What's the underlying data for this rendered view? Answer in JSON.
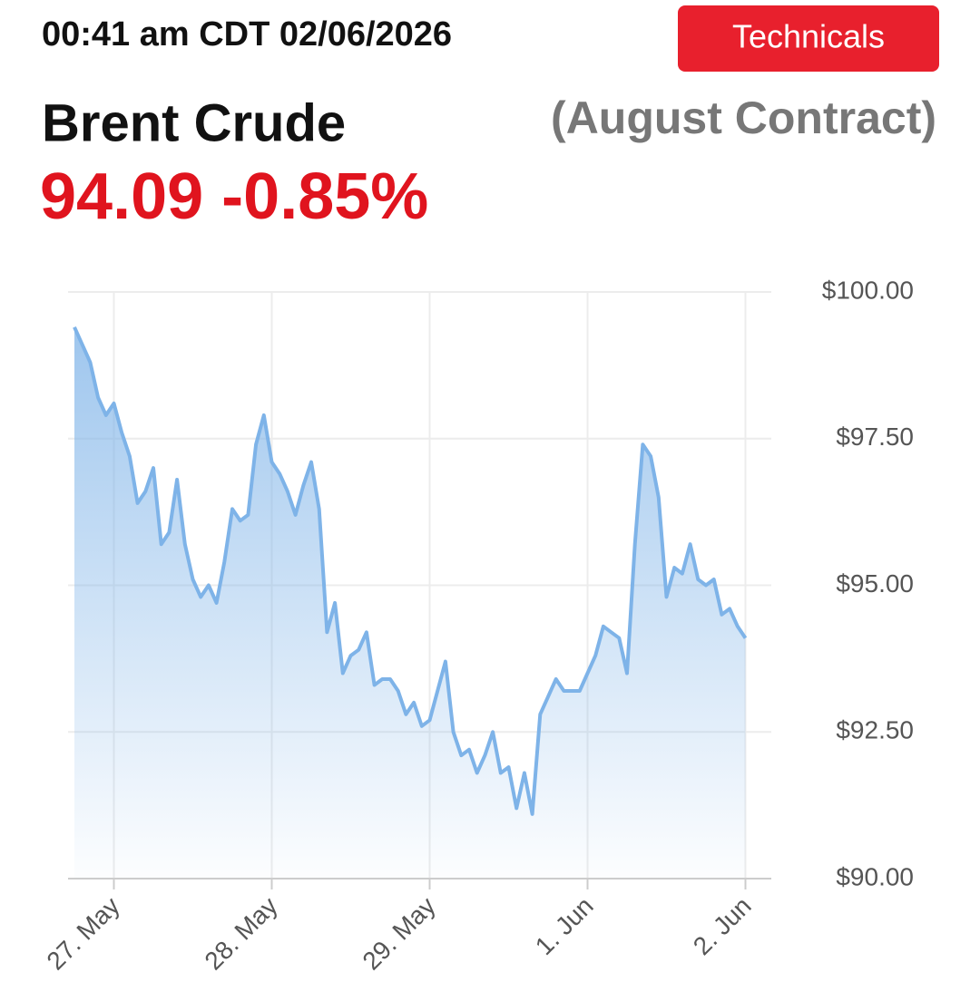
{
  "header": {
    "timestamp": "00:41 am CDT 02/06/2026",
    "button": "Technicals",
    "instrument": "Brent Crude",
    "contract": "(August Contract)",
    "quote": "94.09 -0.85%"
  },
  "chart_data": {
    "type": "area",
    "color": "#7eb3e8",
    "grid": true,
    "categories": [
      null,
      null,
      null,
      null,
      null,
      "27. May",
      null,
      null,
      null,
      null,
      null,
      null,
      null,
      null,
      null,
      null,
      null,
      null,
      null,
      null,
      null,
      null,
      null,
      null,
      null,
      "28. May",
      null,
      null,
      null,
      null,
      null,
      null,
      null,
      null,
      null,
      null,
      null,
      null,
      null,
      null,
      null,
      null,
      null,
      null,
      null,
      "29. May",
      null,
      null,
      null,
      null,
      null,
      null,
      null,
      null,
      null,
      null,
      null,
      null,
      null,
      null,
      null,
      null,
      null,
      null,
      null,
      "1. Jun",
      null,
      null,
      null,
      null,
      null,
      null,
      null,
      null,
      null,
      null,
      null,
      null,
      null,
      null,
      null,
      null,
      null,
      null,
      null,
      "2. Jun"
    ],
    "values": [
      99.4,
      99.1,
      98.8,
      98.2,
      97.9,
      98.1,
      97.6,
      97.2,
      96.4,
      96.6,
      97.0,
      95.7,
      95.9,
      96.8,
      95.7,
      95.1,
      94.8,
      95.0,
      94.7,
      95.4,
      96.3,
      96.1,
      96.2,
      97.4,
      97.9,
      97.1,
      96.9,
      96.6,
      96.2,
      96.7,
      97.1,
      96.3,
      94.2,
      94.7,
      93.5,
      93.8,
      93.9,
      94.2,
      93.3,
      93.4,
      93.4,
      93.2,
      92.8,
      93.0,
      92.6,
      92.7,
      93.2,
      93.7,
      92.5,
      92.1,
      92.2,
      91.8,
      92.1,
      92.5,
      91.8,
      91.9,
      91.2,
      91.8,
      91.1,
      92.8,
      93.1,
      93.4,
      93.2,
      93.2,
      93.2,
      93.5,
      93.8,
      94.3,
      94.2,
      94.1,
      93.5,
      95.7,
      97.4,
      97.2,
      96.5,
      94.8,
      95.3,
      95.2,
      95.7,
      95.1,
      95.0,
      95.1,
      94.5,
      94.6,
      94.3,
      94.1
    ],
    "ylim": [
      90,
      100
    ],
    "yticks": [
      {
        "value": 90,
        "label": "$90.00"
      },
      {
        "value": 92.5,
        "label": "$92.50"
      },
      {
        "value": 95,
        "label": "$95.00"
      },
      {
        "value": 97.5,
        "label": "$97.50"
      },
      {
        "value": 100,
        "label": "$100.00"
      }
    ]
  }
}
